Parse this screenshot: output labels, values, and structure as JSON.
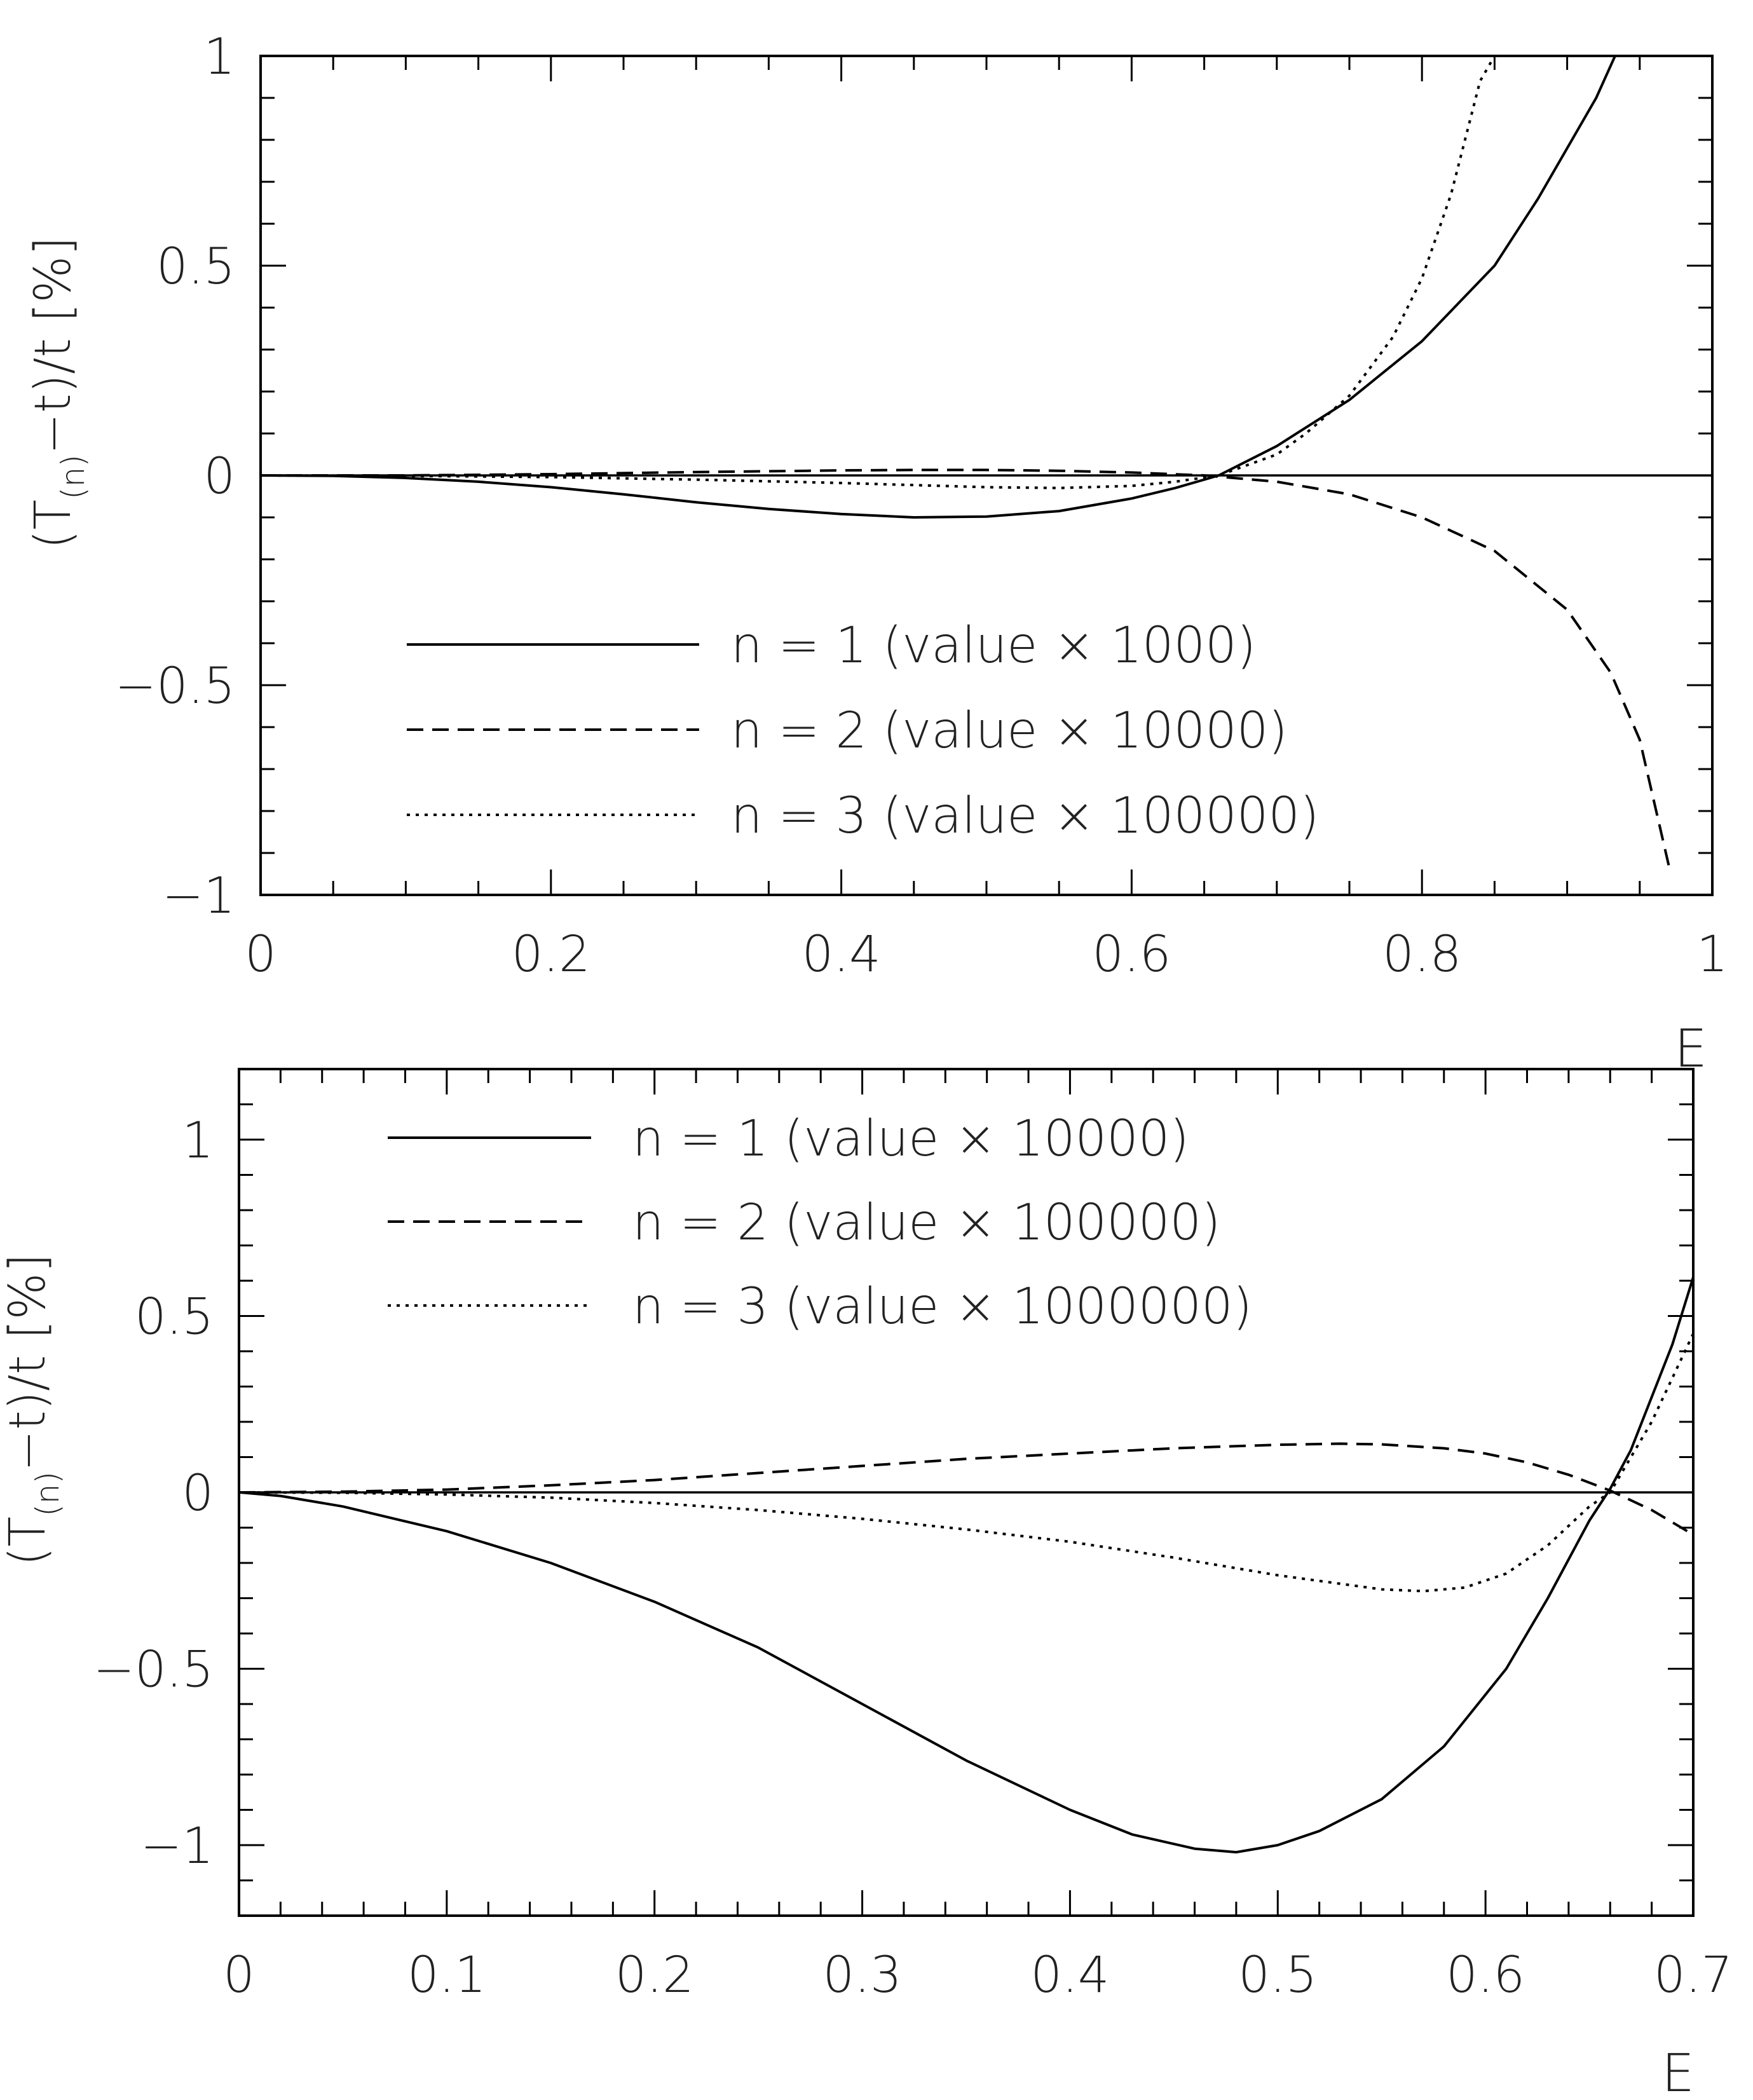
{
  "chart_data": [
    {
      "type": "line",
      "xlabel": "E",
      "ylabel": "(T(n)−t)/t [%]",
      "ylabel_parts": {
        "open": "(T",
        "sub": "(n)",
        "close": "−t)/t [%]"
      },
      "xlim": [
        0,
        1
      ],
      "ylim": [
        -1,
        1
      ],
      "xticks": [
        0,
        0.2,
        0.4,
        0.6,
        0.8,
        1
      ],
      "xtick_labels": [
        "0",
        "0.2",
        "0.4",
        "0.6",
        "0.8",
        "1"
      ],
      "yticks": [
        -1,
        -0.5,
        0,
        0.5,
        1
      ],
      "ytick_labels": [
        "−1",
        "−0.5",
        "0",
        "0.5",
        "1"
      ],
      "minor_x": 0.05,
      "minor_y": 0.1,
      "legend_position": "lower-center",
      "series": [
        {
          "name": "n = 1 (value × 1000)",
          "dash": "solid",
          "x": [
            0,
            0.05,
            0.1,
            0.15,
            0.2,
            0.25,
            0.3,
            0.35,
            0.4,
            0.45,
            0.5,
            0.55,
            0.6,
            0.63,
            0.66,
            0.7,
            0.75,
            0.8,
            0.85,
            0.88,
            0.92,
            0.933
          ],
          "y": [
            0,
            -0.001,
            -0.006,
            -0.015,
            -0.028,
            -0.045,
            -0.064,
            -0.08,
            -0.092,
            -0.1,
            -0.098,
            -0.085,
            -0.055,
            -0.03,
            0.0,
            0.07,
            0.18,
            0.32,
            0.5,
            0.66,
            0.9,
            1.0
          ]
        },
        {
          "name": "n = 2 (value × 10000)",
          "dash": "dashed",
          "x": [
            0,
            0.1,
            0.2,
            0.3,
            0.4,
            0.45,
            0.5,
            0.55,
            0.6,
            0.65,
            0.7,
            0.75,
            0.8,
            0.85,
            0.9,
            0.93,
            0.95,
            0.97
          ],
          "y": [
            0,
            0.0,
            0.003,
            0.008,
            0.012,
            0.013,
            0.013,
            0.011,
            0.007,
            0.0,
            -0.015,
            -0.045,
            -0.1,
            -0.18,
            -0.32,
            -0.47,
            -0.63,
            -0.93
          ]
        },
        {
          "name": "n = 3 (value × 100000)",
          "dash": "dotted",
          "x": [
            0,
            0.1,
            0.2,
            0.3,
            0.4,
            0.5,
            0.55,
            0.6,
            0.63,
            0.66,
            0.7,
            0.72,
            0.75,
            0.78,
            0.8,
            0.82,
            0.84,
            0.85
          ],
          "y": [
            0,
            -0.001,
            -0.004,
            -0.01,
            -0.018,
            -0.028,
            -0.03,
            -0.025,
            -0.015,
            0.0,
            0.05,
            0.1,
            0.19,
            0.33,
            0.47,
            0.67,
            0.94,
            1.0
          ]
        }
      ]
    },
    {
      "type": "line",
      "xlabel": "E",
      "ylabel": "(T(n)−t)/t [%]",
      "ylabel_parts": {
        "open": "(T",
        "sub": "(n)",
        "close": "−t)/t [%]"
      },
      "xlim": [
        0,
        0.7
      ],
      "ylim": [
        -1.2,
        1.2
      ],
      "xticks": [
        0,
        0.1,
        0.2,
        0.3,
        0.4,
        0.5,
        0.6,
        0.7
      ],
      "xtick_labels": [
        "0",
        "0.1",
        "0.2",
        "0.3",
        "0.4",
        "0.5",
        "0.6",
        "0.7"
      ],
      "yticks": [
        -1,
        -0.5,
        0,
        0.5,
        1
      ],
      "ytick_labels": [
        "−1",
        "−0.5",
        "0",
        "0.5",
        "1"
      ],
      "minor_x": 0.02,
      "minor_y": 0.1,
      "legend_position": "upper-left",
      "series": [
        {
          "name": "n = 1 (value × 10000)",
          "dash": "solid",
          "x": [
            0,
            0.02,
            0.05,
            0.1,
            0.15,
            0.2,
            0.25,
            0.3,
            0.35,
            0.4,
            0.43,
            0.46,
            0.48,
            0.5,
            0.52,
            0.55,
            0.58,
            0.61,
            0.63,
            0.65,
            0.66,
            0.67,
            0.69,
            0.7
          ],
          "y": [
            0,
            -0.01,
            -0.04,
            -0.11,
            -0.2,
            -0.31,
            -0.44,
            -0.6,
            -0.76,
            -0.9,
            -0.97,
            -1.01,
            -1.02,
            -1.0,
            -0.96,
            -0.87,
            -0.72,
            -0.5,
            -0.3,
            -0.08,
            0.01,
            0.12,
            0.42,
            0.61
          ]
        },
        {
          "name": "n = 2 (value × 100000)",
          "dash": "dashed",
          "x": [
            0,
            0.05,
            0.1,
            0.15,
            0.2,
            0.25,
            0.3,
            0.35,
            0.4,
            0.45,
            0.5,
            0.53,
            0.55,
            0.58,
            0.6,
            0.62,
            0.64,
            0.66,
            0.68,
            0.7
          ],
          "y": [
            0,
            0.002,
            0.008,
            0.02,
            0.035,
            0.055,
            0.075,
            0.095,
            0.11,
            0.125,
            0.135,
            0.138,
            0.136,
            0.125,
            0.11,
            0.085,
            0.05,
            0.005,
            -0.05,
            -0.12
          ]
        },
        {
          "name": "n = 3 (value × 1000000)",
          "dash": "dotted",
          "x": [
            0,
            0.05,
            0.1,
            0.15,
            0.2,
            0.25,
            0.3,
            0.35,
            0.4,
            0.45,
            0.5,
            0.55,
            0.57,
            0.59,
            0.61,
            0.63,
            0.65,
            0.66,
            0.68,
            0.7
          ],
          "y": [
            0,
            -0.001,
            -0.006,
            -0.015,
            -0.03,
            -0.05,
            -0.075,
            -0.105,
            -0.14,
            -0.185,
            -0.235,
            -0.275,
            -0.28,
            -0.27,
            -0.23,
            -0.15,
            -0.04,
            0.0,
            0.2,
            0.45
          ]
        }
      ]
    }
  ]
}
